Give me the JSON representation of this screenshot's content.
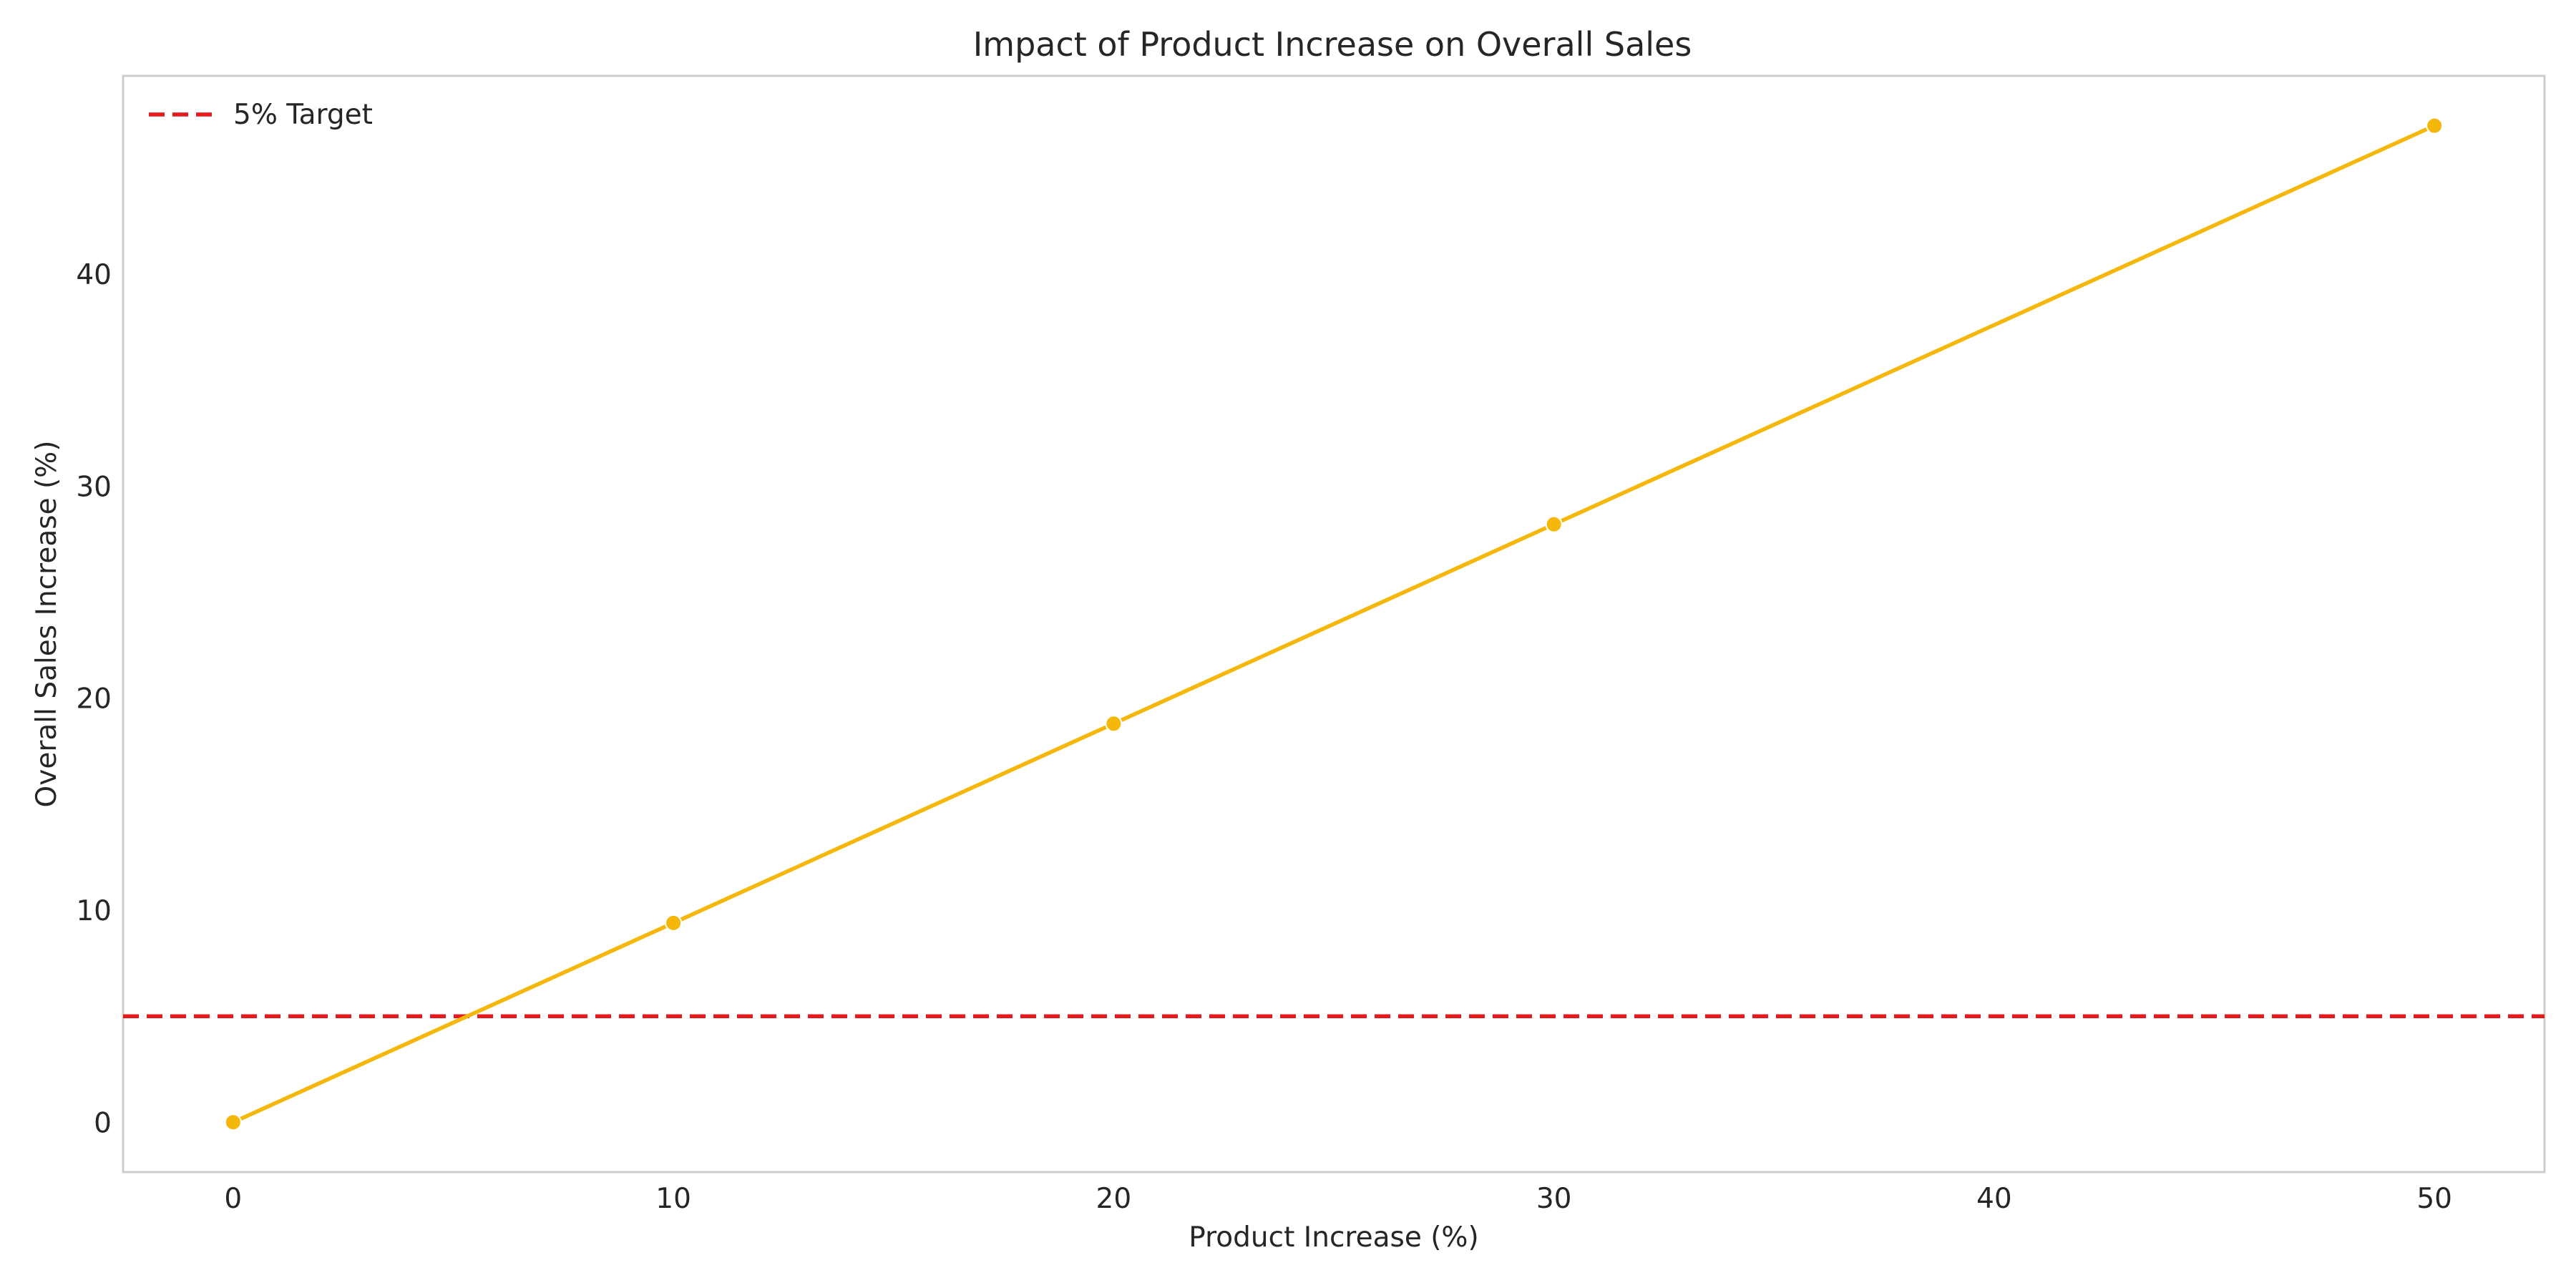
{
  "chart_data": {
    "type": "line",
    "title": "Impact of Product Increase on Overall Sales",
    "xlabel": "Product Increase (%)",
    "ylabel": "Overall Sales Increase (%)",
    "x": [
      0,
      10,
      20,
      30,
      50
    ],
    "series": [
      {
        "values": [
          0,
          9.4,
          18.8,
          28.2,
          47.0
        ],
        "color": "#f5b70a",
        "marker": "circle"
      }
    ],
    "reference_lines": [
      {
        "orientation": "horizontal",
        "y": 5,
        "label": "5% Target",
        "color": "#e41a1c",
        "style": "dashed"
      }
    ],
    "xlim": [
      -2.5,
      52.5
    ],
    "ylim": [
      -2.35,
      49.35
    ],
    "xticks": [
      0,
      10,
      20,
      30,
      40,
      50
    ],
    "yticks": [
      0,
      10,
      20,
      30,
      40
    ],
    "grid": false,
    "legend_position": "top-left"
  }
}
